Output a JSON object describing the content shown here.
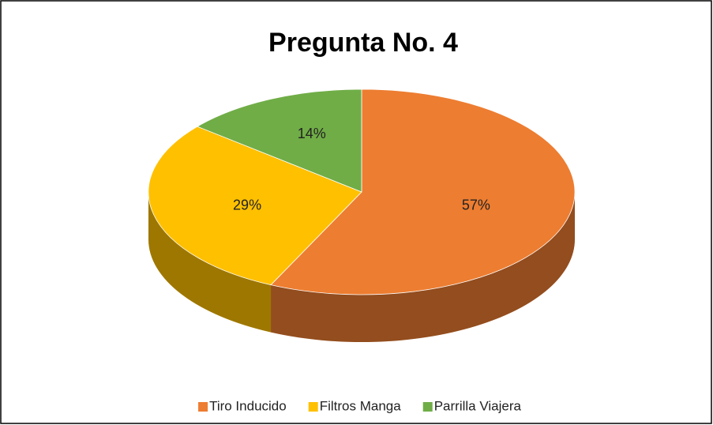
{
  "chart_data": {
    "type": "pie",
    "title": "Pregunta No. 4",
    "categories": [
      "Tiro Inducido",
      "Filtros Manga",
      "Parrilla Viajera"
    ],
    "values": [
      57,
      29,
      14
    ],
    "value_labels": [
      "57%",
      "29%",
      "14%"
    ],
    "colors": [
      "#ED7D31",
      "#FFC000",
      "#70AD47"
    ],
    "legend": "bottom"
  }
}
